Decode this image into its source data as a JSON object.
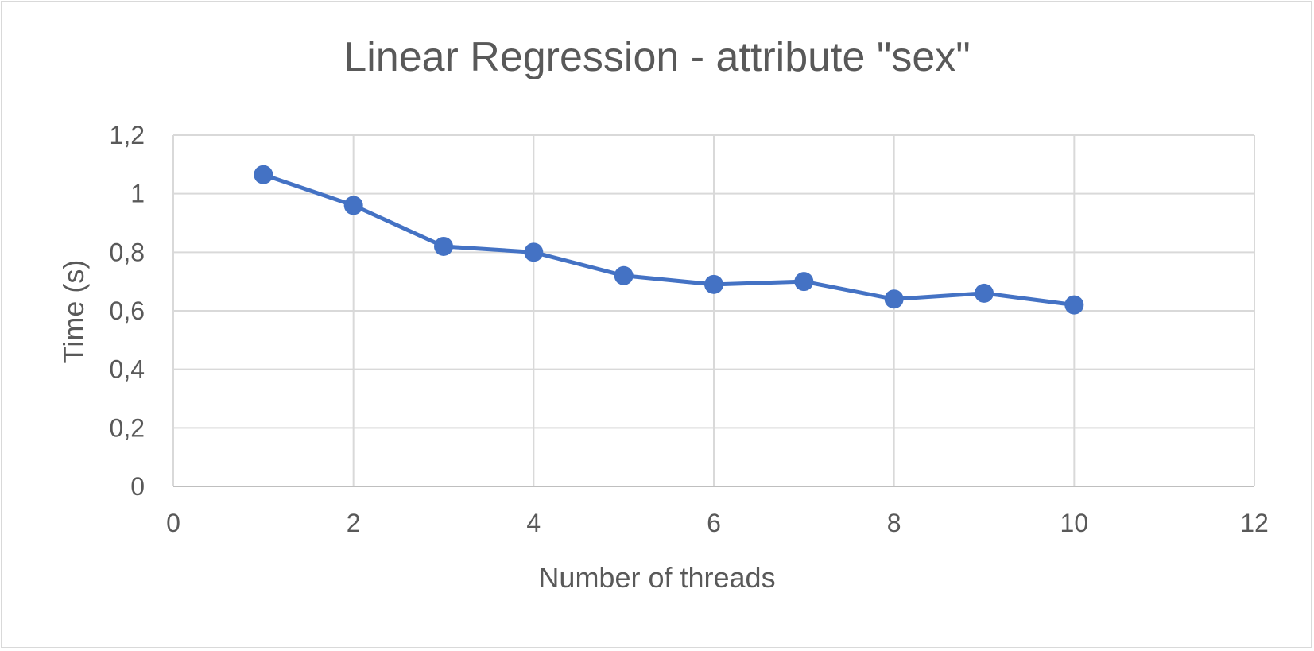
{
  "chart_data": {
    "type": "line",
    "title": "Linear Regression - attribute \"sex\"",
    "xlabel": "Number of threads",
    "ylabel": "Time (s)",
    "xlim": [
      0,
      12
    ],
    "ylim": [
      0,
      1.2
    ],
    "x_ticks": [
      0,
      2,
      4,
      6,
      8,
      10,
      12
    ],
    "x_tick_labels": [
      "0",
      "2",
      "4",
      "6",
      "8",
      "10",
      "12"
    ],
    "y_ticks": [
      0,
      0.2,
      0.4,
      0.6,
      0.8,
      1,
      1.2
    ],
    "y_tick_labels": [
      "0",
      "0,2",
      "0,4",
      "0,6",
      "0,8",
      "1",
      "1,2"
    ],
    "grid": true,
    "legend": "none",
    "series": [
      {
        "color": "#4472C4",
        "x": [
          1,
          2,
          3,
          4,
          5,
          6,
          7,
          8,
          9,
          10
        ],
        "y": [
          1.065,
          0.96,
          0.82,
          0.8,
          0.72,
          0.69,
          0.7,
          0.64,
          0.66,
          0.62
        ]
      }
    ]
  }
}
